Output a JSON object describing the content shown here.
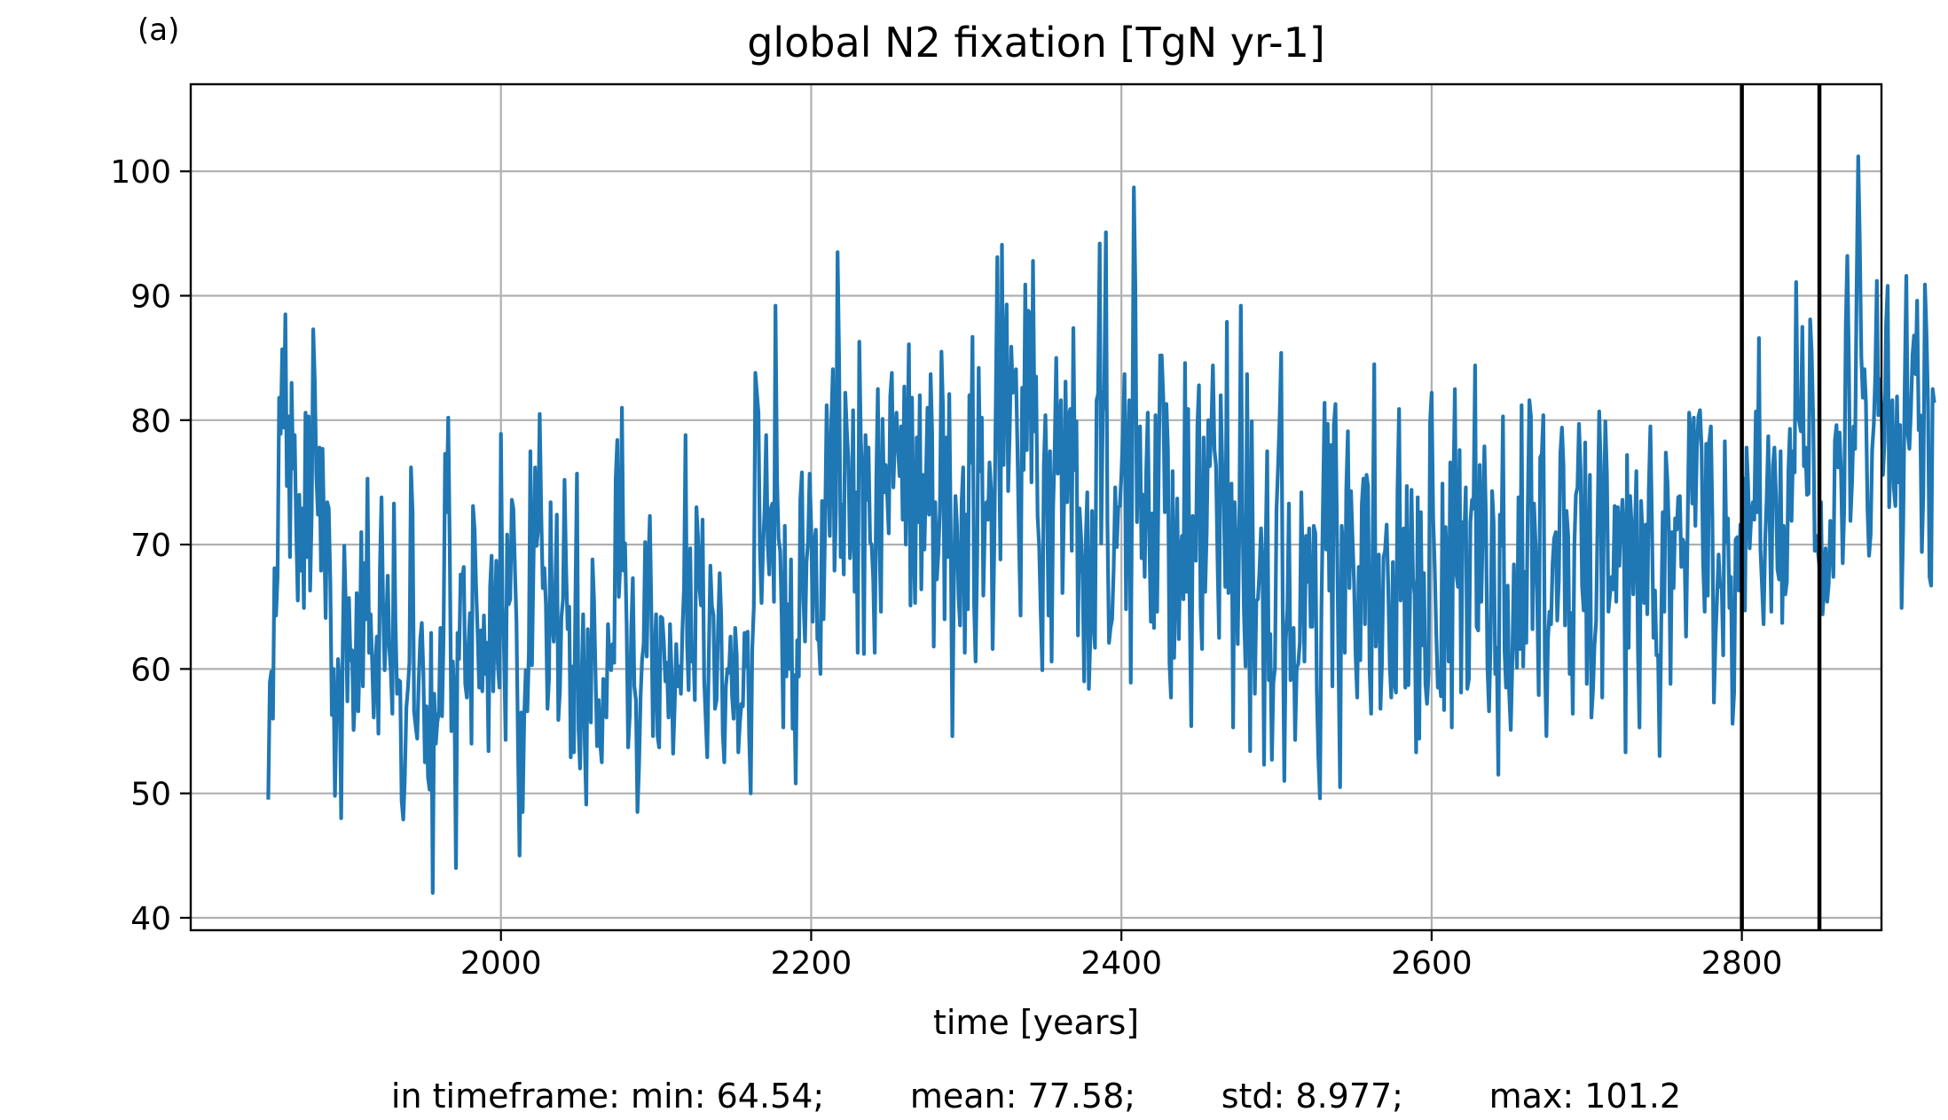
{
  "panel_label": "(a)",
  "stats_text": "in timeframe: min: 64.54;        mean: 77.58;        std: 8.977;        max: 101.2",
  "chart_data": {
    "type": "line",
    "title": "global N2 fixation [TgN yr-1]",
    "xlabel": "time [years]",
    "ylabel": "",
    "xlim": [
      1800,
      2890
    ],
    "ylim": [
      39,
      107
    ],
    "xticks": [
      2000,
      2200,
      2400,
      2600,
      2800
    ],
    "yticks": [
      40,
      50,
      60,
      70,
      80,
      90,
      100
    ],
    "grid": true,
    "vlines": [
      2800,
      2850
    ],
    "line_color": "#1f77b4",
    "series": [
      {
        "x_start": 1850,
        "x_step": 1,
        "values": [
          49.5,
          58.9,
          59.8,
          56.0,
          68.1,
          64.3,
          67.4,
          81.8,
          78.9,
          85.7,
          79.4,
          88.5,
          74.7,
          80.3,
          69.0,
          83.0,
          76.1,
          78.8,
          71.4,
          65.5,
          74.0,
          67.9,
          72.9,
          64.9,
          80.6,
          69.0,
          80.3,
          66.3,
          72.6,
          87.3,
          83.1,
          75.6,
          72.4,
          77.8,
          67.9,
          77.7,
          71.2,
          64.1,
          73.4,
          72.9,
          66.9,
          56.3,
          60.0,
          49.8,
          56.7,
          60.8,
          58.7,
          48.0,
          61.7,
          69.9,
          64.8,
          57.4,
          65.7,
          60.7,
          61.5,
          55.1,
          57.8,
          66.1,
          56.6,
          61.5,
          71.0,
          58.6,
          68.5,
          64.0,
          75.3,
          61.3,
          64.4,
          60.5,
          56.1,
          60.4,
          62.6,
          54.8,
          68.1,
          73.8,
          65.4,
          59.9,
          63.4,
          67.5,
          61.8,
          59.8,
          56.4,
          73.3,
          63.9,
          58.0,
          59.1,
          59.0,
          49.4,
          47.9,
          51.1,
          56.9,
          58.4,
          60.6,
          76.2,
          72.6,
          56.6,
          55.4,
          54.4,
          59.0,
          62.4,
          63.7,
          59.6,
          52.5,
          57.0,
          51.3,
          50.3,
          62.9,
          42.0,
          58.0,
          54.0,
          55.7,
          56.6,
          63.3,
          56.2,
          62.5,
          77.3,
          72.6,
          80.2,
          69.9,
          55.0,
          60.6,
          57.6,
          44.0,
          62.9,
          60.8,
          67.6,
          67.2,
          68.2,
          58.8,
          57.7,
          61.7,
          64.5,
          54.0,
          73.1,
          71.2,
          66.6,
          62.8,
          58.5,
          63.1,
          58.2,
          64.3,
          59.6,
          62.1,
          53.4,
          66.6,
          69.1,
          58.2,
          63.2,
          68.7,
          60.4,
          58.5,
          78.9,
          65.2,
          61.5,
          54.3,
          70.8,
          65.2,
          65.6,
          73.6,
          72.9,
          68.0,
          63.9,
          53.6,
          45.0,
          56.5,
          48.5,
          56.3,
          59.9,
          56.6,
          61.3,
          77.5,
          60.3,
          68.4,
          76.2,
          69.9,
          71.3,
          80.5,
          72.3,
          66.5,
          68.1,
          65.2,
          56.8,
          59.2,
          73.4,
          63.9,
          62.2,
          66.0,
          72.4,
          55.9,
          58.2,
          64.2,
          65.6,
          75.2,
          68.1,
          63.2,
          65.0,
          52.9,
          60.2,
          53.3,
          65.8,
          75.7,
          55.2,
          52.0,
          59.1,
          64.4,
          54.0,
          49.1,
          63.2,
          57.5,
          55.7,
          68.8,
          65.6,
          59.4,
          53.8,
          57.5,
          54.0,
          52.5,
          59.2,
          58.0,
          56.1,
          63.6,
          60.6,
          59.9,
          62.0,
          60.5,
          75.3,
          78.4,
          65.8,
          68.6,
          81.0,
          67.9,
          70.1,
          63.6,
          53.7,
          56.2,
          63.1,
          67.3,
          58.6,
          57.5,
          48.5,
          52.2,
          57.7,
          60.7,
          62.0,
          70.2,
          61.0,
          68.0,
          72.3,
          64.5,
          54.6,
          60.6,
          64.4,
          54.6,
          53.7,
          64.2,
          64.1,
          62.2,
          59.0,
          60.5,
          56.1,
          63.6,
          59.6,
          53.2,
          57.1,
          62.0,
          58.6,
          60.2,
          58.0,
          63.1,
          66.5,
          78.8,
          62.0,
          58.3,
          69.7,
          60.6,
          61.8,
          57.5,
          73.0,
          70.7,
          66.5,
          65.1,
          72.0,
          59.2,
          56.1,
          52.9,
          60.8,
          68.3,
          65.1,
          64.3,
          56.8,
          57.5,
          63.4,
          67.7,
          64.3,
          54.8,
          52.5,
          58.6,
          60.0,
          59.7,
          62.6,
          57.8,
          56.0,
          63.3,
          61.1,
          53.3,
          55.6,
          57.2,
          57.0,
          62.9,
          60.2,
          63.0,
          54.8,
          50.0,
          61.6,
          65.0,
          83.8,
          82.2,
          80.6,
          69.5,
          65.3,
          69.8,
          72.9,
          78.8,
          70.0,
          67.6,
          72.9,
          73.3,
          65.4,
          89.2,
          75.1,
          70.5,
          69.5,
          64.3,
          55.3,
          71.5,
          59.4,
          65.2,
          60.0,
          68.8,
          55.2,
          59.5,
          50.8,
          62.3,
          59.4,
          73.6,
          75.8,
          65.5,
          62.2,
          68.6,
          70.3,
          75.7,
          71.6,
          63.8,
          70.1,
          71.2,
          62.4,
          62.2,
          59.6,
          73.5,
          64.0,
          71.8,
          81.2,
          76.5,
          70.7,
          80.0,
          84.1,
          67.9,
          72.8,
          93.5,
          85.0,
          69.0,
          73.2,
          67.6,
          82.2,
          79.1,
          76.9,
          68.9,
          70.8,
          80.8,
          66.2,
          74.2,
          61.3,
          86.3,
          78.5,
          75.6,
          61.2,
          78.8,
          73.6,
          77.8,
          70.2,
          70.0,
          67.2,
          61.3,
          75.2,
          82.5,
          70.0,
          64.6,
          80.1,
          74.2,
          76.4,
          74.1,
          70.9,
          81.9,
          83.8,
          74.6,
          78.5,
          80.6,
          77.8,
          75.5,
          79.5,
          72.0,
          82.7,
          70.0,
          77.3,
          86.1,
          65.1,
          81.8,
          70.6,
          65.3,
          78.6,
          71.8,
          82.0,
          66.4,
          75.6,
          69.6,
          75.2,
          81.0,
          72.4,
          83.7,
          79.0,
          61.8,
          73.4,
          67.2,
          69.3,
          72.8,
          85.5,
          80.8,
          64.0,
          78.6,
          69.0,
          82.1,
          70.9,
          54.6,
          66.6,
          73.9,
          71.6,
          65.8,
          63.5,
          73.5,
          76.2,
          61.3,
          72.4,
          64.8,
          82.0,
          76.6,
          86.7,
          65.3,
          60.6,
          69.0,
          84.2,
          75.9,
          80.2,
          65.9,
          71.8,
          73.4,
          72.0,
          76.6,
          74.4,
          61.6,
          69.6,
          81.0,
          93.1,
          79.1,
          68.8,
          94.1,
          76.4,
          85.1,
          89.3,
          74.3,
          79.3,
          85.9,
          82.2,
          82.6,
          84.1,
          77.6,
          70.1,
          64.3,
          82.6,
          76.0,
          90.9,
          77.6,
          88.8,
          88.5,
          75.0,
          92.8,
          79.1,
          83.5,
          72.3,
          69.8,
          64.6,
          59.9,
          76.3,
          80.4,
          74.6,
          64.3,
          77.5,
          60.6,
          72.9,
          77.8,
          85.0,
          75.7,
          79.3,
          81.6,
          66.1,
          73.4,
          83.1,
          73.4,
          80.2,
          80.9,
          69.5,
          87.4,
          76.0,
          79.9,
          62.7,
          72.9,
          70.6,
          67.5,
          59.0,
          70.3,
          74.2,
          58.4,
          62.6,
          72.7,
          64.0,
          61.7,
          81.6,
          82.1,
          94.2,
          70.1,
          80.6,
          82.5,
          95.1,
          71.8,
          62.1,
          63.3,
          64.0,
          67.9,
          74.6,
          69.8,
          73.0,
          73.1,
          75.6,
          79.1,
          83.7,
          64.8,
          76.8,
          81.6,
          58.9,
          76.7,
          98.7,
          90.7,
          71.8,
          78.6,
          79.5,
          68.9,
          74.0,
          67.4,
          76.0,
          80.6,
          70.7,
          63.8,
          72.5,
          63.3,
          80.4,
          64.6,
          75.4,
          85.2,
          85.2,
          81.8,
          72.6,
          81.3,
          77.7,
          60.5,
          57.7,
          75.9,
          60.9,
          67.6,
          73.7,
          62.4,
          69.3,
          70.7,
          65.6,
          84.6,
          66.2,
          80.9,
          65.3,
          55.4,
          72.3,
          70.4,
          68.7,
          79.6,
          82.8,
          65.0,
          61.6,
          78.6,
          66.2,
          70.9,
          80.0,
          76.3,
          79.6,
          84.4,
          77.6,
          76.4,
          68.5,
          62.5,
          82.0,
          76.6,
          73.3,
          66.6,
          87.9,
          66.1,
          66.7,
          74.9,
          55.3,
          73.4,
          69.6,
          62.0,
          71.5,
          89.2,
          72.9,
          64.6,
          60.2,
          83.7,
          68.2,
          53.4,
          79.9,
          66.9,
          58.0,
          65.5,
          65.6,
          67.8,
          71.3,
          67.8,
          52.3,
          69.9,
          77.5,
          59.1,
          62.8,
          52.7,
          58.9,
          60.1,
          72.8,
          76.3,
          80.0,
          85.4,
          65.1,
          51.0,
          62.3,
          64.8,
          73.3,
          59.1,
          59.6,
          63.3,
          54.3,
          60.1,
          60.4,
          62.1,
          74.2,
          67.8,
          60.6,
          70.7,
          67.0,
          71.3,
          63.4,
          63.4,
          71.5,
          70.9,
          58.2,
          52.9,
          49.6,
          65.0,
          73.7,
          81.4,
          69.6,
          79.7,
          66.3,
          78.0,
          58.6,
          79.6,
          81.3,
          71.0,
          60.1,
          50.5,
          71.5,
          69.4,
          61.3,
          74.5,
          79.1,
          66.5,
          74.3,
          70.5,
          66.8,
          61.1,
          57.7,
          68.2,
          60.7,
          73.3,
          75.3,
          63.6,
          75.6,
          74.7,
          59.9,
          56.4,
          70.6,
          84.5,
          61.8,
          65.6,
          69.2,
          56.8,
          60.4,
          69.0,
          69.5,
          71.6,
          66.9,
          60.3,
          57.7,
          68.6,
          59.0,
          58.1,
          74.3,
          80.9,
          65.5,
          70.3,
          71.3,
          58.5,
          74.7,
          58.7,
          64.9,
          74.4,
          67.3,
          66.0,
          53.3,
          73.8,
          54.4,
          72.6,
          61.9,
          67.7,
          58.8,
          57.2,
          59.6,
          79.9,
          82.2,
          72.2,
          68.1,
          62.9,
          58.5,
          59.5,
          57.8,
          74.9,
          56.7,
          71.4,
          67.5,
          60.6,
          76.6,
          55.3,
          74.3,
          82.5,
          67.6,
          66.6,
          77.6,
          58.1,
          71.8,
          70.4,
          74.6,
          58.4,
          59.2,
          71.8,
          73.6,
          72.9,
          84.4,
          63.4,
          63.1,
          76.4,
          65.4,
          71.4,
          77.9,
          72.2,
          60.2,
          56.6,
          62.1,
          74.3,
          71.8,
          59.6,
          61.7,
          51.5,
          72.4,
          69.9,
          80.3,
          61.5,
          58.5,
          66.7,
          58.1,
          55.1,
          60.4,
          68.4,
          63.4,
          60.1,
          73.8,
          61.6,
          81.2,
          60.2,
          67.8,
          62.1,
          73.0,
          81.6,
          80.3,
          63.2,
          73.3,
          70.0,
          66.2,
          57.9,
          77.0,
          77.3,
          80.4,
          61.0,
          54.6,
          62.4,
          64.6,
          63.6,
          68.5,
          70.5,
          71.0,
          63.9,
          67.2,
          77.3,
          79.4,
          76.4,
          63.5,
          72.7,
          70.7,
          59.6,
          64.5,
          56.4,
          69.9,
          74.0,
          74.6,
          79.7,
          76.1,
          66.7,
          64.7,
          78.2,
          58.8,
          66.1,
          75.6,
          56.1,
          58.3,
          61.9,
          63.8,
          72.0,
          80.7,
          76.4,
          57.7,
          71.8,
          79.9,
          75.6,
          64.6,
          66.0,
          67.4,
          66.4,
          73.1,
          65.4,
          73.0,
          68.3,
          71.5,
          73.6,
          70.6,
          53.3,
          77.2,
          61.7,
          73.9,
          71.3,
          66.0,
          71.0,
          75.9,
          61.5,
          55.3,
          73.5,
          70.7,
          65.3,
          71.6,
          64.4,
          74.4,
          79.5,
          72.0,
          62.5,
          66.3,
          61.1,
          61.1,
          53.0,
          63.4,
          72.6,
          64.6,
          77.4,
          75.1,
          71.1,
          58.8,
          71.0,
          66.5,
          72.1,
          71.2,
          73.8,
          73.9,
          68.2,
          70.4,
          69.9,
          62.6,
          71.0,
          80.6,
          78.8,
          73.3,
          80.2,
          71.5,
          77.7,
          80.3,
          80.8,
          77.8,
          68.6,
          64.6,
          78.1,
          65.9,
          78.3,
          79.5,
          72.2,
          57.3,
          62.4,
          65.6,
          69.2,
          66.6,
          66.8,
          61.1,
          78.3,
          70.2,
          72.1,
          64.9,
          67.4,
          55.6,
          58.1,
          70.4,
          70.6,
          66.3,
          71.6,
          71.6,
          75.3,
          64.7,
          77.8,
          74.9,
          69.7,
          72.2,
          73.4,
          72.0,
          80.7,
          72.6,
          86.6,
          69.6,
          66.6,
          63.6,
          70.3,
          73.7,
          78.7,
          71.4,
          64.6,
          76.3,
          77.8,
          73.9,
          68.0,
          67.2,
          77.5,
          63.7,
          71.5,
          66.0,
          67.0,
          75.9,
          79.3,
          71.9,
          77.5,
          75.8,
          91.1,
          80.3,
          79.9,
          79.1,
          87.5,
          76.3,
          77.8,
          74.0,
          74.1,
          88.1,
          85.5,
          80.0,
          69.5,
          70.7,
          69.5,
          68.2,
          73.4,
          64.4,
          66.5,
          69.7,
          65.4,
          66.8,
          71.9,
          70.4,
          67.4,
          78.3,
          79.6,
          76.2,
          79.0,
          75.6,
          68.5,
          72.8,
          87.7,
          93.2,
          84.4,
          71.9,
          74.9,
          79.5,
          77.7,
          90.6,
          101.2,
          94.6,
          85.1,
          81.8,
          84.1,
          81.4,
          72.8,
          69.1,
          70.8,
          77.6,
          79.6,
          83.5,
          91.2,
          80.4,
          83.3,
          81.1,
          75.6,
          78.3,
          87.7,
          90.8,
          73.0,
          77.6,
          81.6,
          74.5,
          73.1,
          81.9,
          75.0,
          79.6,
          64.9,
          71.6,
          82.6,
          91.6,
          78.9,
          77.7,
          80.8,
          85.2,
          86.8,
          83.7,
          89.6,
          79.2,
          80.4,
          69.4,
          74.1,
          90.9,
          87.1,
          81.2,
          67.4,
          66.7,
          82.5,
          81.4
        ]
      }
    ]
  }
}
